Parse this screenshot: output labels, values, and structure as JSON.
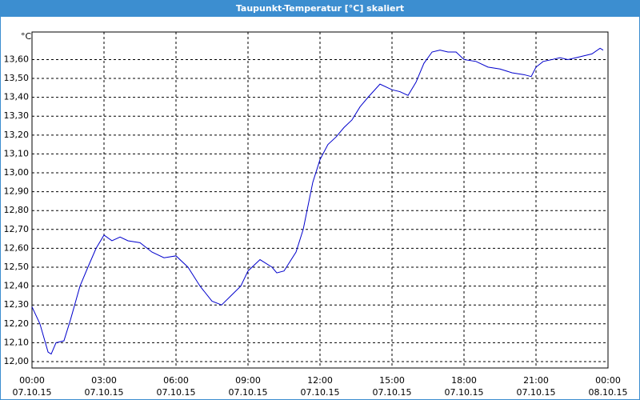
{
  "chart_data": {
    "type": "line",
    "title": "Taupunkt-Temperatur [°C] skaliert",
    "y_unit": "°C",
    "x": [
      0,
      0.33,
      0.67,
      0.8,
      1.0,
      1.33,
      1.6,
      2.0,
      2.33,
      2.67,
      3.0,
      3.33,
      3.67,
      4.0,
      4.5,
      5.0,
      5.5,
      6.0,
      6.5,
      7.0,
      7.5,
      7.9,
      8.3,
      8.7,
      9.0,
      9.5,
      10.0,
      10.2,
      10.5,
      11.0,
      11.3,
      11.7,
      12.0,
      12.33,
      12.67,
      13.0,
      13.33,
      13.67,
      14.0,
      14.5,
      15.0,
      15.33,
      15.67,
      16.0,
      16.33,
      16.67,
      17.0,
      17.33,
      17.67,
      18.0,
      18.5,
      19.0,
      19.5,
      20.0,
      20.5,
      20.8,
      21.0,
      21.3,
      21.67,
      22.0,
      22.33,
      22.67,
      23.0,
      23.33,
      23.67,
      23.8
    ],
    "series": [
      {
        "color": "#0000cc",
        "values": [
          12.29,
          12.2,
          12.05,
          12.04,
          12.1,
          12.11,
          12.22,
          12.4,
          12.5,
          12.6,
          12.67,
          12.64,
          12.66,
          12.64,
          12.63,
          12.58,
          12.55,
          12.56,
          12.5,
          12.4,
          12.32,
          12.3,
          12.35,
          12.4,
          12.48,
          12.54,
          12.5,
          12.47,
          12.48,
          12.58,
          12.7,
          12.95,
          13.07,
          13.15,
          13.19,
          13.24,
          13.28,
          13.35,
          13.4,
          13.47,
          13.44,
          13.43,
          13.41,
          13.48,
          13.58,
          13.64,
          13.65,
          13.64,
          13.64,
          13.6,
          13.59,
          13.56,
          13.55,
          13.53,
          13.52,
          13.51,
          13.56,
          13.59,
          13.6,
          13.61,
          13.6,
          13.61,
          13.62,
          13.63,
          13.66,
          13.65
        ]
      }
    ],
    "xlim": [
      0,
      24
    ],
    "xticks": [
      {
        "value": 0,
        "label": "00:00",
        "date": "07.10.15"
      },
      {
        "value": 3,
        "label": "03:00",
        "date": "07.10.15"
      },
      {
        "value": 6,
        "label": "06:00",
        "date": "07.10.15"
      },
      {
        "value": 9,
        "label": "09:00",
        "date": "07.10.15"
      },
      {
        "value": 12,
        "label": "12:00",
        "date": "07.10.15"
      },
      {
        "value": 15,
        "label": "15:00",
        "date": "07.10.15"
      },
      {
        "value": 18,
        "label": "18:00",
        "date": "07.10.15"
      },
      {
        "value": 21,
        "label": "21:00",
        "date": "07.10.15"
      },
      {
        "value": 24,
        "label": "00:00",
        "date": "08.10.15"
      }
    ],
    "ylim": [
      11.966,
      13.746
    ],
    "yticks": [
      {
        "value": 12.0,
        "label": "12,00"
      },
      {
        "value": 12.1,
        "label": "12,10"
      },
      {
        "value": 12.2,
        "label": "12,20"
      },
      {
        "value": 12.3,
        "label": "12,30"
      },
      {
        "value": 12.4,
        "label": "12,40"
      },
      {
        "value": 12.5,
        "label": "12,50"
      },
      {
        "value": 12.6,
        "label": "12,60"
      },
      {
        "value": 12.7,
        "label": "12,70"
      },
      {
        "value": 12.8,
        "label": "12,80"
      },
      {
        "value": 12.9,
        "label": "12,90"
      },
      {
        "value": 13.0,
        "label": "13,00"
      },
      {
        "value": 13.1,
        "label": "13,10"
      },
      {
        "value": 13.2,
        "label": "13,20"
      },
      {
        "value": 13.3,
        "label": "13,30"
      },
      {
        "value": 13.4,
        "label": "13,40"
      },
      {
        "value": 13.5,
        "label": "13,50"
      },
      {
        "value": 13.6,
        "label": "13,60"
      }
    ],
    "grid": true
  }
}
